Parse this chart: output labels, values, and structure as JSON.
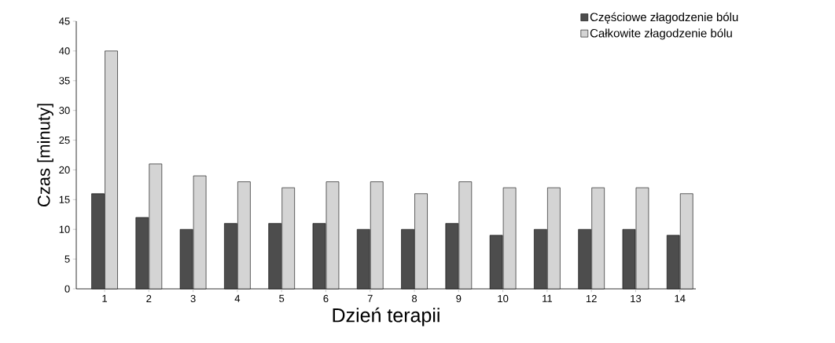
{
  "chart_data": {
    "type": "bar",
    "xlabel": "Dzień terapii",
    "ylabel": "Czas [minuty]",
    "categories": [
      "1",
      "2",
      "3",
      "4",
      "5",
      "6",
      "7",
      "8",
      "9",
      "10",
      "11",
      "12",
      "13",
      "14"
    ],
    "series": [
      {
        "name": "Częściowe złagodzenie bólu",
        "color": "#4d4d4d",
        "values": [
          16,
          12,
          10,
          11,
          11,
          11,
          10,
          10,
          11,
          9,
          10,
          10,
          10,
          9
        ]
      },
      {
        "name": "Całkowite złagodzenie bólu",
        "color": "#d4d4d4",
        "values": [
          40,
          21,
          19,
          18,
          17,
          18,
          18,
          16,
          18,
          17,
          17,
          17,
          17,
          16
        ]
      }
    ],
    "ylim": [
      0,
      45
    ],
    "yticks": [
      0,
      5,
      10,
      15,
      20,
      25,
      30,
      35,
      40,
      45
    ],
    "grid": false,
    "legend": "top right"
  }
}
